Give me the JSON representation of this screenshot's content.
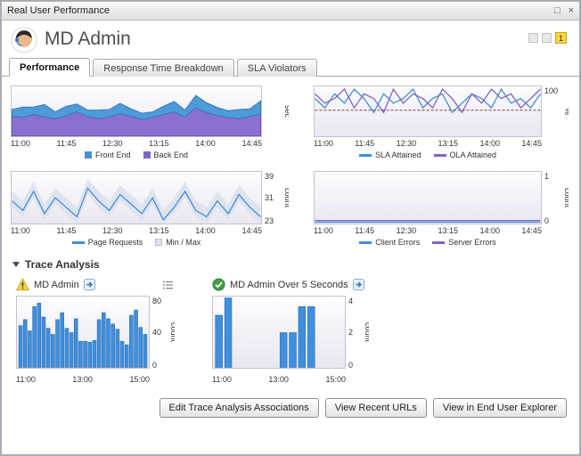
{
  "window": {
    "title": "Real User Performance",
    "restore_glyph": "□",
    "close_glyph": "×"
  },
  "header": {
    "title": "MD Admin",
    "badge": "1"
  },
  "tabs": [
    {
      "label": "Performance",
      "active": true
    },
    {
      "label": "Response Time Breakdown",
      "active": false
    },
    {
      "label": "SLA Violators",
      "active": false
    }
  ],
  "trace": {
    "section_title": "Trace Analysis",
    "left_title": "MD Admin",
    "right_title": "MD Admin Over 5 Seconds"
  },
  "buttons": [
    {
      "label": "Edit Trace Analysis Associations"
    },
    {
      "label": "View Recent URLs"
    },
    {
      "label": "View in End User Explorer"
    }
  ],
  "colors": {
    "accent_blue": "#3f8fdc",
    "accent_purple": "#8064c8",
    "warning_yellow": "#fdd835",
    "ok_green": "#43a047",
    "badge_yellow": "#ffd83d"
  },
  "charts": {
    "response_sec": {
      "type": "stacked-area",
      "ylabel": "sec",
      "ylim": [
        0,
        8
      ],
      "yticks": [],
      "x_ticks": [
        "11:00",
        "11:45",
        "12:30",
        "13:15",
        "14:00",
        "14:45"
      ],
      "series": [
        {
          "name": "Back End",
          "color": "#6f54bd",
          "fill": "#8a70d0",
          "values": [
            3.2,
            3.0,
            3.5,
            3.1,
            2.8,
            3.3,
            3.9,
            3.2,
            2.8,
            3.1,
            3.6,
            3.2,
            2.7,
            3.0,
            3.5,
            3.9,
            3.1,
            4.6,
            3.8,
            3.3,
            3.0,
            2.8,
            3.2,
            3.5
          ]
        },
        {
          "name": "Front End",
          "color": "#2f7bc0",
          "fill": "#4f9bd8",
          "values": [
            1.1,
            1.7,
            1.2,
            2.0,
            1.1,
            1.5,
            1.3,
            1.0,
            1.4,
            1.2,
            1.7,
            1.2,
            1.0,
            0.9,
            1.3,
            1.7,
            1.1,
            2.0,
            1.6,
            1.3,
            1.1,
            1.5,
            1.2,
            2.2
          ]
        }
      ],
      "legend": [
        {
          "label": "Front End",
          "color": "#4a8fd4",
          "marker": "square"
        },
        {
          "label": "Back End",
          "color": "#8064c8",
          "marker": "square"
        }
      ]
    },
    "sla_ola": {
      "type": "lines",
      "ylabel": "%",
      "ylim": [
        90,
        100.5
      ],
      "yticks": [
        "100"
      ],
      "ref": 95.5,
      "x_ticks": [
        "11:00",
        "11:45",
        "12:30",
        "13:15",
        "14:00",
        "14:45"
      ],
      "series": [
        {
          "name": "SLA Attained",
          "color": "#3f8fdc",
          "values": [
            98,
            96,
            99,
            97,
            100,
            98,
            95,
            99,
            97,
            98,
            100,
            96,
            98,
            99,
            95,
            97,
            99,
            98,
            96,
            100,
            97,
            98,
            96,
            99
          ]
        },
        {
          "name": "OLA Attained",
          "color": "#8064c8",
          "values": [
            99,
            97,
            98,
            100,
            96,
            99,
            98,
            95,
            100,
            97,
            99,
            98,
            96,
            100,
            98,
            95,
            99,
            97,
            100,
            98,
            99,
            96,
            98,
            100
          ]
        }
      ],
      "legend": [
        {
          "label": "SLA Attained",
          "color": "#3f8fdc",
          "marker": "line"
        },
        {
          "label": "OLA Attained",
          "color": "#8064c8",
          "marker": "line"
        }
      ]
    },
    "page_requests": {
      "type": "line-band",
      "ylabel": "count",
      "ylim": [
        23,
        39
      ],
      "yticks": [
        "39",
        "31",
        "23"
      ],
      "x_ticks": [
        "11:00",
        "11:45",
        "12:30",
        "13:15",
        "14:00",
        "14:45"
      ],
      "band": {
        "color": "#dfe3ee",
        "max": [
          33,
          30,
          36,
          29,
          34,
          31,
          28,
          37,
          33,
          30,
          35,
          32,
          29,
          34,
          27,
          31,
          36,
          30,
          28,
          33,
          29,
          35,
          31,
          28
        ],
        "min": [
          28,
          25,
          31,
          24,
          29,
          26,
          23,
          32,
          28,
          25,
          30,
          27,
          24,
          29,
          23,
          26,
          31,
          25,
          23,
          28,
          24,
          30,
          26,
          23
        ]
      },
      "series": [
        {
          "name": "Page Requests",
          "color": "#3f8fdc",
          "values": [
            30,
            27,
            33,
            26,
            31,
            28,
            25,
            34,
            30,
            27,
            32,
            29,
            26,
            31,
            24,
            28,
            33,
            27,
            25,
            30,
            26,
            32,
            28,
            25
          ]
        }
      ],
      "legend": [
        {
          "label": "Page Requests",
          "color": "#3f8fdc",
          "marker": "line"
        },
        {
          "label": "Min / Max",
          "color": "#dfe3ee",
          "border": "#b8bfcc",
          "marker": "square"
        }
      ]
    },
    "errors": {
      "type": "lines",
      "ylabel": "count",
      "ylim": [
        0,
        1
      ],
      "yticks": [
        "1",
        "0"
      ],
      "x_ticks": [
        "11:00",
        "11:45",
        "12:30",
        "13:15",
        "14:00",
        "14:45"
      ],
      "series": [
        {
          "name": "Server Errors",
          "color": "#8064c8",
          "values": [
            0.05,
            0.05
          ]
        },
        {
          "name": "Client Errors",
          "color": "#3f8fdc",
          "values": [
            0.02,
            0.02
          ]
        }
      ],
      "legend": [
        {
          "label": "Client Errors",
          "color": "#3f8fdc",
          "marker": "line"
        },
        {
          "label": "Server Errors",
          "color": "#8064c8",
          "marker": "line"
        }
      ]
    },
    "trace_md_admin": {
      "type": "bars",
      "ylabel": "count",
      "ylim": [
        0,
        80
      ],
      "yticks": [
        "80",
        "40",
        "0"
      ],
      "x_ticks": [
        "11:00",
        "13:00",
        "15:00"
      ],
      "series": [
        {
          "name": "MD Admin",
          "color": "#2a6cb5",
          "fill": "#3f8fdc",
          "values": [
            48,
            55,
            42,
            70,
            74,
            58,
            45,
            38,
            55,
            63,
            45,
            40,
            56,
            30,
            30,
            29,
            31,
            55,
            63,
            56,
            50,
            44,
            30,
            26,
            60,
            66,
            46,
            38
          ]
        }
      ]
    },
    "trace_over5": {
      "type": "bars",
      "ylabel": "count",
      "ylim": [
        0,
        4
      ],
      "yticks": [
        "4",
        "2",
        "0"
      ],
      "x_ticks": [
        "11:00",
        "13:00",
        "15:00"
      ],
      "series": [
        {
          "name": "MD Admin Over 5 Seconds",
          "color": "#2a6cb5",
          "fill": "#3f8fdc",
          "values": [
            3,
            4,
            0,
            0,
            0,
            0,
            0,
            2,
            2,
            3.5,
            3.5,
            0,
            0,
            0
          ]
        }
      ]
    }
  }
}
